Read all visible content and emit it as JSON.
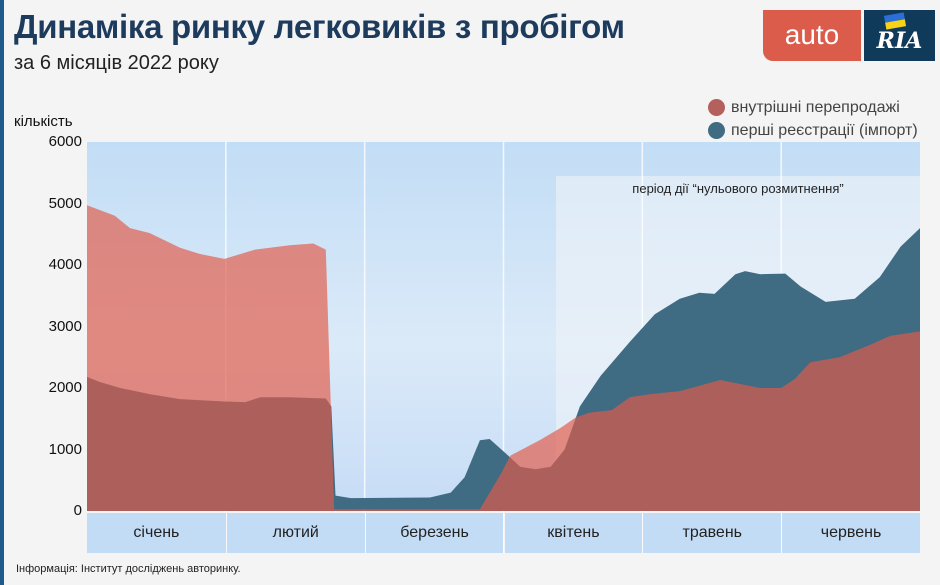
{
  "header": {
    "title": "Динаміка ринку легковиків з пробігом",
    "subtitle": "за 6 місяців 2022 року"
  },
  "logo": {
    "left": "auto",
    "right": "RIA"
  },
  "footer": {
    "source": "Інформація: Інститут досліджень авторинку."
  },
  "chart_data": {
    "type": "area",
    "title": "Динаміка ринку легковиків з пробігом",
    "subtitle": "за 6 місяців 2022 року",
    "xlabel": "",
    "ylabel": "кількість",
    "ylim": [
      0,
      6000
    ],
    "yticks": [
      0,
      1000,
      2000,
      3000,
      4000,
      5000,
      6000
    ],
    "xlim": [
      0,
      6
    ],
    "categories": [
      "січень",
      "лютий",
      "березень",
      "квітень",
      "травень",
      "червень"
    ],
    "annotation": {
      "text": "період дії “нульового розмитнення”",
      "x_range": [
        3.38,
        6
      ]
    },
    "legend_position": "top-right",
    "series": [
      {
        "name": "перші реєстрації (імпорт)",
        "color": "#3f6b83",
        "x": [
          0,
          0.09,
          0.24,
          0.45,
          0.67,
          0.99,
          1.14,
          1.25,
          1.46,
          1.72,
          1.76,
          1.79,
          1.9,
          2.47,
          2.62,
          2.72,
          2.83,
          2.9,
          3.01,
          3.12,
          3.23,
          3.34,
          3.44,
          3.55,
          3.7,
          3.91,
          4.09,
          4.27,
          4.41,
          4.52,
          4.67,
          4.74,
          4.85,
          5.03,
          5.14,
          5.32,
          5.53,
          5.71,
          5.86,
          6
        ],
        "y": [
          2180,
          2100,
          2000,
          1900,
          1820,
          1780,
          1770,
          1850,
          1850,
          1830,
          1700,
          250,
          210,
          220,
          300,
          550,
          1150,
          1170,
          950,
          720,
          680,
          720,
          1000,
          1700,
          2200,
          2750,
          3200,
          3450,
          3550,
          3530,
          3850,
          3900,
          3850,
          3860,
          3650,
          3400,
          3450,
          3800,
          4300,
          4600
        ]
      },
      {
        "name": "внутрішні перепродажі",
        "color": "#d9847c",
        "x": [
          0,
          0.2,
          0.31,
          0.45,
          0.67,
          0.81,
          0.99,
          1.21,
          1.46,
          1.63,
          1.72,
          1.78,
          2.83,
          2.98,
          3.05,
          3.26,
          3.41,
          3.52,
          3.62,
          3.78,
          3.91,
          4.06,
          4.27,
          4.56,
          4.85,
          5.0,
          5.1,
          5.21,
          5.42,
          5.64,
          5.79,
          6
        ],
        "y": [
          4970,
          4800,
          4600,
          4520,
          4280,
          4180,
          4100,
          4250,
          4320,
          4350,
          4250,
          30,
          30,
          600,
          900,
          1150,
          1350,
          1520,
          1600,
          1640,
          1850,
          1900,
          1950,
          2130,
          2000,
          2000,
          2150,
          2420,
          2500,
          2700,
          2850,
          2920
        ]
      }
    ]
  }
}
